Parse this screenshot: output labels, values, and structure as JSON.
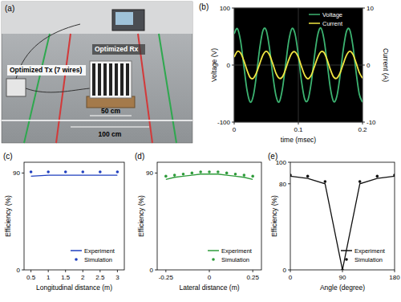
{
  "photo": {
    "label": "(a)",
    "annotations": [
      "Optimized Rx",
      "Optimized Tx (7 wires)",
      "50 cm",
      "100 cm"
    ]
  },
  "chart_data": [
    {
      "type": "line",
      "title": "(b)",
      "x_label": "time (msec)",
      "y_label": "Voltage (V)",
      "y2_label": "Current (A)",
      "x": [
        0,
        0.005,
        0.01,
        0.015,
        0.02,
        0.025,
        0.03,
        0.035,
        0.04,
        0.045,
        0.05,
        0.055,
        0.06,
        0.065,
        0.07,
        0.075,
        0.08,
        0.085,
        0.09,
        0.095,
        0.1,
        0.105,
        0.11,
        0.115,
        0.12,
        0.125,
        0.13,
        0.135,
        0.14,
        0.145,
        0.15,
        0.155,
        0.16,
        0.165,
        0.17,
        0.175,
        0.18,
        0.185,
        0.19,
        0.195,
        0.2
      ],
      "series": [
        {
          "name": "Voltage",
          "color": "#3cb371",
          "values": [
            55,
            64,
            42,
            -1,
            -44,
            -65,
            -53,
            -15,
            31,
            61,
            61,
            30,
            -16,
            -53,
            -65,
            -43,
            -1,
            42,
            64,
            54,
            17,
            -29,
            -60,
            -61,
            -32,
            14,
            52,
            65,
            45,
            3,
            -41,
            -64,
            -55,
            -19,
            27,
            59,
            62,
            34,
            -12,
            -51,
            -65
          ]
        },
        {
          "name": "Current",
          "color": "#f0e442",
          "axis": "y2",
          "values": [
            1.4,
            2.4,
            2.1,
            0.8,
            -0.9,
            -2.2,
            -2.3,
            -1.3,
            0.3,
            1.8,
            2.4,
            1.8,
            0.3,
            -1.4,
            -2.3,
            -2.1,
            -0.8,
            0.9,
            2.1,
            2.3,
            1.4,
            -0.3,
            -1.8,
            -2.4,
            -1.8,
            -0.3,
            1.3,
            2.3,
            2.2,
            0.9,
            -0.8,
            -2.1,
            -2.3,
            -1.4,
            0.2,
            1.7,
            2.4,
            1.9,
            0.4,
            -1.3,
            -2.3
          ]
        }
      ],
      "xlim": [
        0,
        0.2
      ],
      "xticks": [
        0,
        0.1,
        0.2
      ],
      "ylim": [
        -100,
        100
      ],
      "yticks": [
        -100,
        0,
        100
      ],
      "y2lim": [
        -10,
        10
      ],
      "y2ticks": [
        -10,
        0,
        10
      ],
      "grid": true,
      "legend": "upper-right"
    },
    {
      "type": "line",
      "title": "(c)",
      "x_label": "Longitudinal distance (m)",
      "y_label": "Efficiency (%)",
      "x": [
        0.5,
        1,
        1.5,
        2,
        2.5,
        3
      ],
      "series": [
        {
          "name": "Experiment",
          "type": "line",
          "color": "#1f3fbf",
          "values": [
            87,
            88,
            88,
            88,
            88,
            88
          ]
        },
        {
          "name": "Simulation",
          "type": "scatter",
          "marker": "circle",
          "color": "#1f3fbf",
          "values": [
            91,
            91,
            91,
            91,
            91,
            91
          ]
        }
      ],
      "xlim": [
        0.3,
        3.2
      ],
      "xticks": [
        0.5,
        1,
        1.5,
        2,
        2.5,
        3
      ],
      "ylim": [
        0,
        100
      ],
      "yticks": [
        0,
        90
      ],
      "grid": false,
      "legend": "lower-right"
    },
    {
      "type": "line",
      "title": "(d)",
      "x_label": "Lateral distance (m)",
      "y_label": "Efficiency (%)",
      "x": [
        -0.25,
        -0.2,
        -0.15,
        -0.1,
        -0.05,
        0,
        0.05,
        0.1,
        0.15,
        0.2,
        0.25
      ],
      "series": [
        {
          "name": "Experiment",
          "type": "line",
          "color": "#2e9b3a",
          "values": [
            84,
            86,
            87,
            88,
            89,
            89,
            89,
            88,
            87,
            86,
            84
          ]
        },
        {
          "name": "Simulation",
          "type": "scatter",
          "marker": "circle",
          "color": "#2e9b3a",
          "values": [
            87,
            88,
            89,
            90,
            91,
            91,
            91,
            90,
            89,
            88,
            87
          ]
        }
      ],
      "xlim": [
        -0.3,
        0.3
      ],
      "xticks": [
        -0.25,
        0,
        0.25
      ],
      "ylim": [
        0,
        100
      ],
      "yticks": [
        0,
        90
      ],
      "grid": false,
      "legend": "lower-right"
    },
    {
      "type": "line",
      "title": "(e)",
      "x_label": "Angle (degree)",
      "y_label": "Efficiency (%)",
      "x": [
        0,
        30,
        60,
        90,
        120,
        150,
        180
      ],
      "series": [
        {
          "name": "Experiment",
          "type": "line",
          "color": "#111111",
          "values": [
            87,
            85,
            80,
            0,
            80,
            85,
            87
          ]
        },
        {
          "name": "Simulation",
          "type": "scatter",
          "marker": "circle",
          "color": "#111111",
          "values": [
            88,
            87,
            82,
            0,
            82,
            87,
            88
          ]
        }
      ],
      "xlim": [
        0,
        180
      ],
      "xticks": [
        0,
        90,
        180
      ],
      "ylim": [
        0,
        100
      ],
      "yticks": [
        0,
        80,
        100
      ],
      "grid": false,
      "legend": "lower-right"
    }
  ]
}
